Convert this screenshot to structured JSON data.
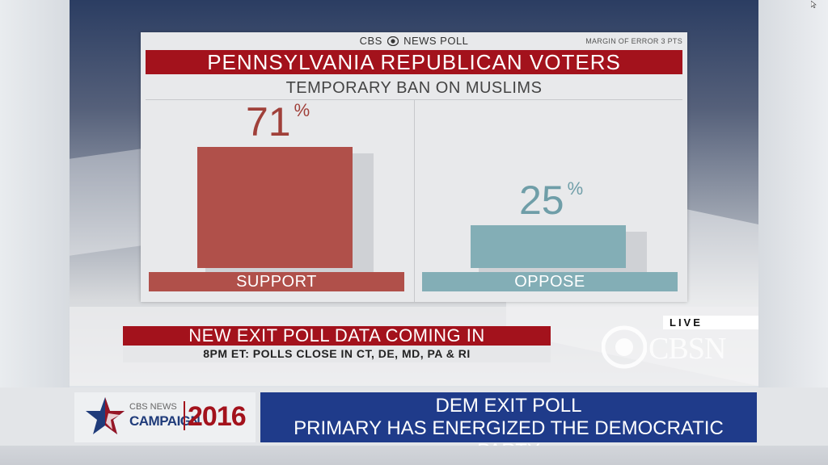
{
  "brand": {
    "left": "CBS",
    "right": "NEWS POLL"
  },
  "margin_of_error": "MARGIN OF ERROR 3 PTS",
  "chart_data": {
    "type": "bar",
    "title": "PENNSYLVANIA REPUBLICAN VOTERS",
    "subtitle": "TEMPORARY BAN ON MUSLIMS",
    "categories": [
      "SUPPORT",
      "OPPOSE"
    ],
    "values": [
      71,
      25
    ],
    "value_suffix": "%",
    "colors": [
      "#b0504a",
      "#83aeb6"
    ],
    "label_colors": [
      "#a0403a",
      "#6f9ea8"
    ],
    "ylim": [
      0,
      71
    ]
  },
  "ticker": {
    "headline": "NEW EXIT POLL DATA COMING IN",
    "subline": "8PM ET: POLLS CLOSE IN CT, DE, MD, PA & RI"
  },
  "live_badge": "LIVE",
  "network_logo": "CBSN",
  "campaign_logo": {
    "network": "CBS NEWS",
    "label": "CAMPAIGN",
    "year": "2016"
  },
  "lower_third": {
    "line1": "DEM EXIT POLL",
    "line2": "PRIMARY HAS ENERGIZED THE DEMOCRATIC PARTY"
  }
}
